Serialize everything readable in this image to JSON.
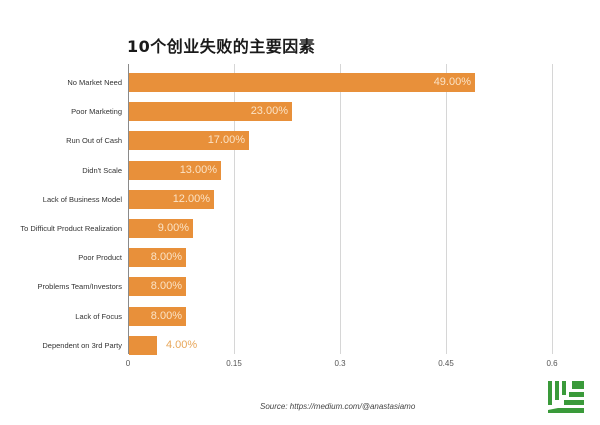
{
  "title": "10个创业失败的主要因素",
  "source": "Source: https://medium.com/@anastasiamo",
  "colors": {
    "bar": "#e8903a",
    "grid": "#d6d6d6",
    "logo": "#3a9a3a"
  },
  "chart_data": {
    "type": "bar",
    "orientation": "horizontal",
    "title": "10个创业失败的主要因素",
    "xlabel": "",
    "ylabel": "",
    "xlim": [
      0,
      0.6
    ],
    "xticks": [
      "0",
      "0.15",
      "0.3",
      "0.45",
      "0.6"
    ],
    "grid": true,
    "categories": [
      "No Market Need",
      "Poor Marketing",
      "Run Out of Cash",
      "Didn't Scale",
      "Lack of Business Model",
      "To Difficult Product Realization",
      "Poor Product",
      "Problems Team/Investors",
      "Lack of Focus",
      "Dependent on 3rd Party"
    ],
    "values": [
      0.49,
      0.23,
      0.17,
      0.13,
      0.12,
      0.09,
      0.08,
      0.08,
      0.08,
      0.04
    ],
    "labels": [
      "49.00%",
      "23.00%",
      "17.00%",
      "13.00%",
      "12.00%",
      "9.00%",
      "8.00%",
      "8.00%",
      "8.00%",
      "4.00%"
    ],
    "annotation": "Source: https://medium.com/@anastasiamo"
  }
}
